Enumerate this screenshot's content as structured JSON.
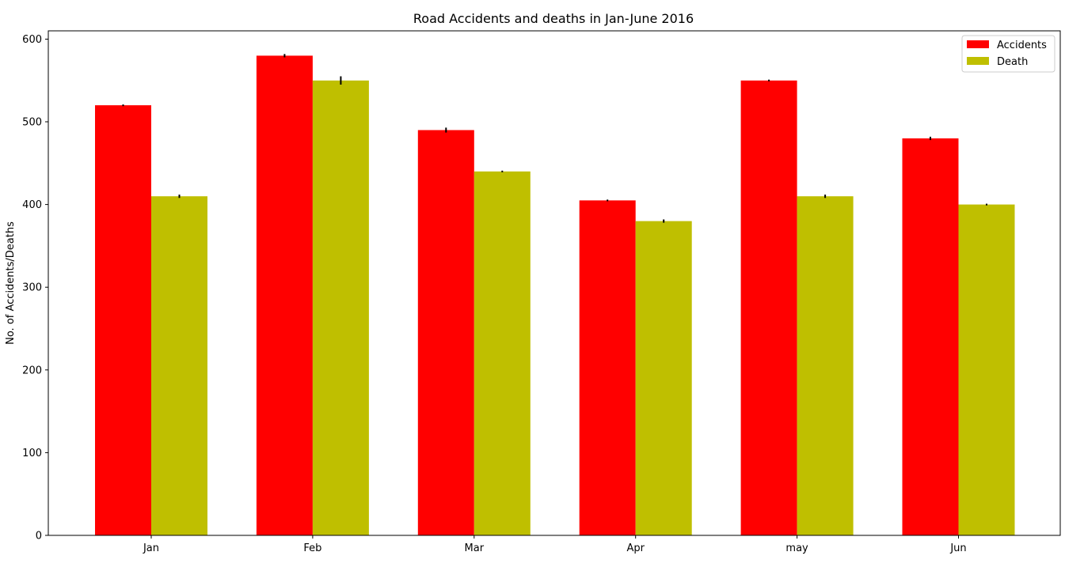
{
  "chart_data": {
    "type": "bar",
    "title": "Road Accidents and deaths in Jan-June 2016",
    "xlabel": "",
    "ylabel": "No. of Accidents/Deaths",
    "categories": [
      "Jan",
      "Feb",
      "Mar",
      "Apr",
      "may",
      "Jun"
    ],
    "ylim": [
      0,
      610
    ],
    "yticks": [
      0,
      100,
      200,
      300,
      400,
      500,
      600
    ],
    "grid": false,
    "legend_position": "top-right",
    "series": [
      {
        "name": "Accidents",
        "color": "#ff0000",
        "values": [
          520,
          580,
          490,
          405,
          550,
          480
        ],
        "errors": [
          1,
          2,
          3,
          1,
          1,
          2
        ]
      },
      {
        "name": "Death",
        "color": "#bfbf00",
        "values": [
          410,
          550,
          440,
          380,
          410,
          400
        ],
        "errors": [
          2,
          5,
          1,
          2,
          2,
          1
        ]
      }
    ]
  }
}
